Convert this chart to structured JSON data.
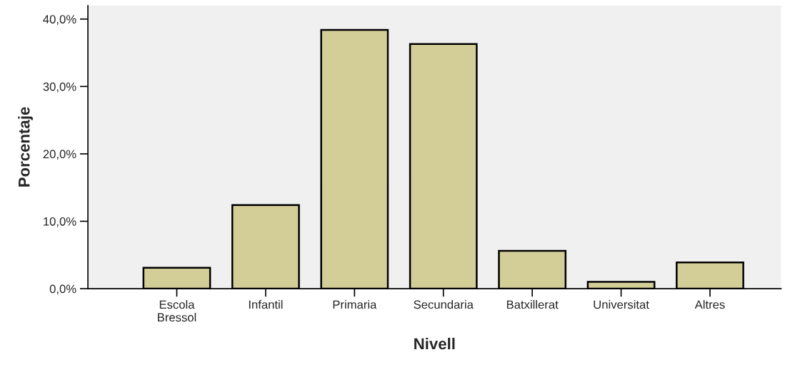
{
  "chart_data": {
    "type": "bar",
    "xlabel": "Nivell",
    "ylabel": "Porcentaje",
    "categories": [
      "Escola\nBressol",
      "Infantil",
      "Primaria",
      "Secundaria",
      "Batxillerat",
      "Universitat",
      "Altres"
    ],
    "values": [
      3.1,
      12.4,
      38.4,
      36.3,
      5.6,
      1.0,
      3.9
    ],
    "color": "#d3ce98",
    "ylim": [
      0,
      42
    ],
    "yticks": [
      {
        "value": 0,
        "label": "0,0%"
      },
      {
        "value": 10,
        "label": "10,0%"
      },
      {
        "value": 20,
        "label": "20,0%"
      },
      {
        "value": 30,
        "label": "30,0%"
      },
      {
        "value": 40,
        "label": "40,0%"
      }
    ],
    "grid": false,
    "legend": false
  }
}
